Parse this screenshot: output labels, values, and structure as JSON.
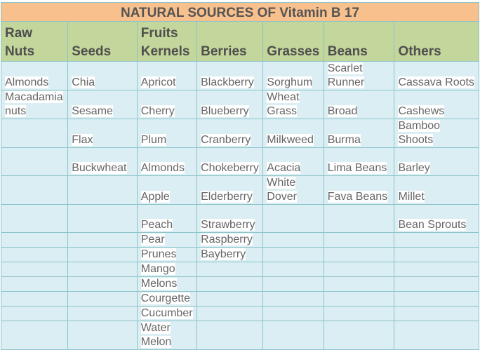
{
  "title": "NATURAL SOURCES OF Vitamin B 17",
  "headers": [
    "Raw Nuts",
    "Seeds",
    "Fruits Kernels",
    "Berries",
    "Grasses",
    "Beans",
    "Others"
  ],
  "rows": [
    [
      "Almonds",
      "Chia",
      "Apricot",
      "Blackberry",
      "Sorghum",
      "Scarlet Runner",
      "Cassava Roots"
    ],
    [
      "Macadamia nuts",
      "Sesame",
      "Cherry",
      "Blueberry",
      "Wheat Grass",
      "Broad",
      "Cashews"
    ],
    [
      "",
      "Flax",
      "Plum",
      "Cranberry",
      "Milkweed",
      "Burma",
      "Bamboo Shoots"
    ],
    [
      "",
      "Buckwheat",
      "Almonds",
      "Chokeberry",
      "Acacia",
      "Lima Beans",
      "Barley"
    ],
    [
      "",
      "",
      "Apple",
      "Elderberry",
      "White Dover",
      "Fava Beans",
      "Millet"
    ],
    [
      "",
      "",
      "Peach",
      "Strawberry",
      "",
      "",
      "Bean Sprouts"
    ],
    [
      "",
      "",
      "Pear",
      "Raspberry",
      "",
      "",
      ""
    ],
    [
      "",
      "",
      "Prunes",
      "Bayberry",
      "",
      "",
      ""
    ],
    [
      "",
      "",
      "Mango",
      "",
      "",
      "",
      ""
    ],
    [
      "",
      "",
      "Melons",
      "",
      "",
      "",
      ""
    ],
    [
      "",
      "",
      "Courgette",
      "",
      "",
      "",
      ""
    ],
    [
      "",
      "",
      "Cucumber",
      "",
      "",
      "",
      ""
    ],
    [
      "",
      "",
      "Water Melon",
      "",
      "",
      "",
      ""
    ]
  ]
}
